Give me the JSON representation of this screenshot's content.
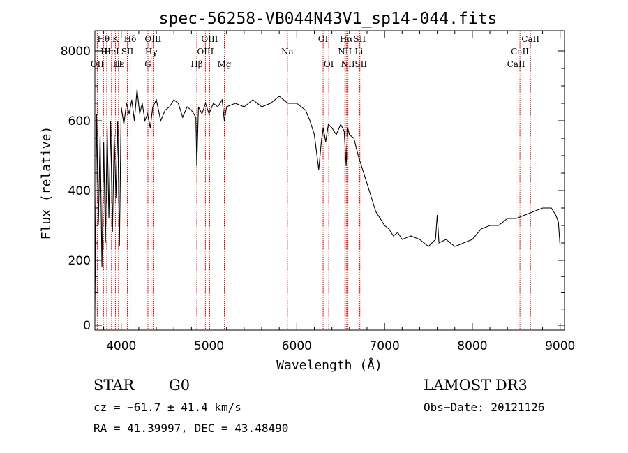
{
  "chart_data": {
    "type": "line",
    "title": "spec-56258-VB044N43V1_sp14-044.fits",
    "xlabel": "Wavelength (Å)",
    "ylabel": "Flux (relative)",
    "xlim": [
      3700,
      9050
    ],
    "ylim": [
      -10,
      8500
    ],
    "xticks": [
      4000,
      5000,
      6000,
      7000,
      8000,
      9000
    ],
    "yticks": [
      0,
      200,
      400,
      600,
      8000
    ],
    "series": [
      {
        "name": "flux",
        "x": [
          3700,
          3720,
          3740,
          3760,
          3780,
          3800,
          3820,
          3840,
          3860,
          3880,
          3900,
          3920,
          3940,
          3960,
          3980,
          4000,
          4030,
          4060,
          4090,
          4120,
          4150,
          4180,
          4210,
          4240,
          4270,
          4300,
          4330,
          4360,
          4400,
          4450,
          4500,
          4550,
          4600,
          4650,
          4700,
          4750,
          4800,
          4850,
          4861,
          4880,
          4920,
          4960,
          5000,
          5050,
          5100,
          5150,
          5175,
          5200,
          5300,
          5400,
          5500,
          5600,
          5700,
          5800,
          5900,
          6000,
          6050,
          6100,
          6150,
          6200,
          6250,
          6280,
          6300,
          6330,
          6360,
          6400,
          6450,
          6500,
          6540,
          6563,
          6580,
          6600,
          6650,
          6700,
          6750,
          6800,
          6850,
          6900,
          6950,
          7000,
          7050,
          7100,
          7150,
          7200,
          7300,
          7400,
          7500,
          7580,
          7600,
          7620,
          7700,
          7800,
          7900,
          8000,
          8100,
          8200,
          8300,
          8400,
          8500,
          8600,
          8700,
          8800,
          8900,
          8950,
          8980,
          9000
        ],
        "values": [
          50,
          620,
          300,
          560,
          180,
          540,
          250,
          580,
          320,
          600,
          280,
          560,
          380,
          600,
          240,
          640,
          590,
          650,
          620,
          660,
          600,
          690,
          620,
          650,
          600,
          620,
          580,
          640,
          660,
          600,
          630,
          640,
          660,
          650,
          610,
          640,
          630,
          610,
          470,
          640,
          620,
          650,
          620,
          650,
          640,
          660,
          600,
          640,
          650,
          640,
          660,
          640,
          650,
          670,
          650,
          650,
          640,
          630,
          600,
          560,
          460,
          540,
          580,
          540,
          590,
          580,
          560,
          590,
          570,
          470,
          580,
          560,
          550,
          500,
          460,
          420,
          380,
          340,
          320,
          300,
          290,
          270,
          280,
          260,
          270,
          260,
          240,
          260,
          330,
          250,
          260,
          240,
          250,
          260,
          290,
          300,
          300,
          320,
          320,
          330,
          340,
          350,
          350,
          330,
          310,
          240
        ]
      }
    ],
    "emission_lines": [
      {
        "label": "Hθ",
        "x": 3798,
        "row": 1
      },
      {
        "label": "OII",
        "x": 3727,
        "row": 3
      },
      {
        "label": "Hη",
        "x": 3835,
        "row": 2
      },
      {
        "label": "HeI",
        "x": 3889,
        "row": 2
      },
      {
        "label": "Hε",
        "x": 3970,
        "row": 3
      },
      {
        "label": "K",
        "x": 3934,
        "row": 1
      },
      {
        "label": "H",
        "x": 3969,
        "row": 3
      },
      {
        "label": "SII",
        "x": 4070,
        "row": 2
      },
      {
        "label": "Hδ",
        "x": 4102,
        "row": 1
      },
      {
        "label": "OIII",
        "x": 4363,
        "row": 1
      },
      {
        "label": "Hγ",
        "x": 4341,
        "row": 2
      },
      {
        "label": "G",
        "x": 4304,
        "row": 3
      },
      {
        "label": "Hβ",
        "x": 4861,
        "row": 3
      },
      {
        "label": "OIII",
        "x": 5007,
        "row": 1
      },
      {
        "label": "OIII",
        "x": 4959,
        "row": 2
      },
      {
        "label": "Mg",
        "x": 5175,
        "row": 3
      },
      {
        "label": "Na",
        "x": 5893,
        "row": 2
      },
      {
        "label": "OI",
        "x": 6300,
        "row": 1
      },
      {
        "label": "OI",
        "x": 6364,
        "row": 3
      },
      {
        "label": "Hα",
        "x": 6563,
        "row": 1
      },
      {
        "label": "SII",
        "x": 6716,
        "row": 1
      },
      {
        "label": "NII",
        "x": 6548,
        "row": 2
      },
      {
        "label": "Li",
        "x": 6708,
        "row": 2
      },
      {
        "label": "NII",
        "x": 6583,
        "row": 3
      },
      {
        "label": "SII",
        "x": 6731,
        "row": 3
      },
      {
        "label": "CaII",
        "x": 8662,
        "row": 1
      },
      {
        "label": "CaII",
        "x": 8542,
        "row": 2
      },
      {
        "label": "CaII",
        "x": 8498,
        "row": 3
      }
    ]
  },
  "info": {
    "class_label": "STAR",
    "subclass": "G0",
    "survey": "LAMOST DR3",
    "cz": "cz = −61.7 ± 41.4 km/s",
    "obs_date": "Obs−Date: 20121126",
    "coords": "RA =  41.39997, DEC =  43.48490"
  },
  "colors": {
    "line_marker": "#cc0000",
    "spectrum": "#000000"
  }
}
